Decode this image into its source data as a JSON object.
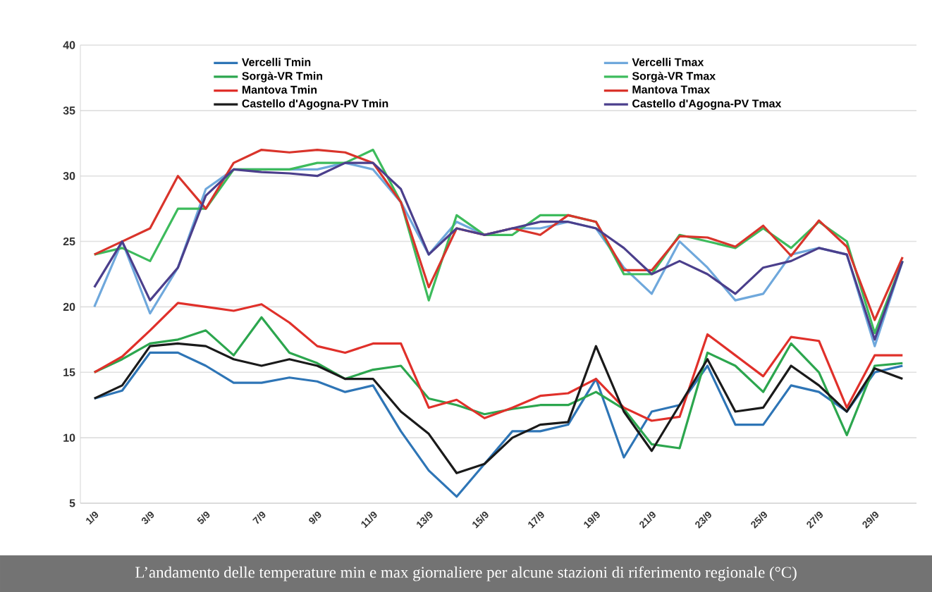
{
  "chart_data": {
    "type": "line",
    "categories": [
      "1/9",
      null,
      "3/9",
      null,
      "5/9",
      null,
      "7/9",
      null,
      "9/9",
      null,
      "11/9",
      null,
      "13/9",
      null,
      "15/9",
      null,
      "17/9",
      null,
      "19/9",
      null,
      "21/9",
      null,
      "23/9",
      null,
      "25/9",
      null,
      "27/9",
      null,
      "29/9",
      null
    ],
    "series": [
      {
        "name": "Vercelli Tmin",
        "color": "#2e75b6",
        "values": [
          13,
          13.6,
          16.5,
          16.5,
          15.5,
          14.2,
          14.2,
          14.6,
          14.3,
          13.5,
          14,
          10.5,
          7.5,
          5.5,
          8,
          10.5,
          10.5,
          11,
          14.5,
          8.5,
          12,
          12.5,
          15.5,
          11,
          11,
          14,
          13.5,
          12,
          15,
          15.5
        ]
      },
      {
        "name": "Vercelli Tmax",
        "color": "#6fa8dc",
        "values": [
          20,
          25,
          19.5,
          23,
          29,
          30.5,
          30.5,
          30.5,
          30.5,
          31,
          30.5,
          28,
          24,
          26.5,
          25.5,
          26,
          26,
          26.5,
          26,
          23,
          21,
          25,
          23,
          20.5,
          21,
          24,
          24.5,
          24,
          17,
          23.5
        ]
      },
      {
        "name": "Sorgà-VR Tmin",
        "color": "#2ca64e",
        "values": [
          15,
          16,
          17.2,
          17.5,
          18.2,
          16.3,
          19.2,
          16.5,
          15.7,
          14.5,
          15.2,
          15.5,
          13,
          12.5,
          11.8,
          12.2,
          12.5,
          12.5,
          13.5,
          12.2,
          9.5,
          9.2,
          16.5,
          15.5,
          13.5,
          17.2,
          15,
          10.2,
          15.5,
          15.7
        ]
      },
      {
        "name": "Sorgà-VR Tmax",
        "color": "#3dbb5c",
        "values": [
          24,
          24.5,
          23.5,
          27.5,
          27.5,
          30.5,
          30.5,
          30.5,
          31,
          31,
          32,
          28,
          20.5,
          27,
          25.5,
          25.5,
          27,
          27,
          26.5,
          22.5,
          22.5,
          25.5,
          25,
          24.5,
          26,
          24.5,
          26.5,
          25,
          18,
          23.5
        ]
      },
      {
        "name": "Mantova  Tmin",
        "color": "#e0302a",
        "values": [
          15,
          16.2,
          18.2,
          20.3,
          20,
          19.7,
          20.2,
          18.8,
          17,
          16.5,
          17.2,
          17.2,
          12.3,
          12.9,
          11.5,
          12.3,
          13.2,
          13.4,
          14.5,
          12.3,
          11.3,
          11.6,
          17.9,
          16.3,
          14.7,
          17.7,
          17.4,
          12.3,
          16.3,
          16.3
        ]
      },
      {
        "name": "Mantova  Tmax",
        "color": "#d9342b",
        "values": [
          24,
          25,
          26,
          30,
          27.5,
          31,
          32,
          31.8,
          32,
          31.8,
          31,
          28,
          21.5,
          26,
          25.5,
          26,
          25.5,
          27,
          26.5,
          22.8,
          22.8,
          25.4,
          25.3,
          24.6,
          26.2,
          23.9,
          26.6,
          24.6,
          19,
          23.8
        ]
      },
      {
        "name": "Castello d'Agogna-PV Tmin",
        "color": "#1a1a1a",
        "values": [
          13,
          14,
          17,
          17.2,
          17,
          16,
          15.5,
          16,
          15.5,
          14.5,
          14.5,
          12,
          10.3,
          7.3,
          8,
          10,
          11,
          11.2,
          17,
          12,
          9,
          12.5,
          16,
          12,
          12.3,
          15.5,
          14,
          12,
          15.3,
          14.5
        ]
      },
      {
        "name": "Castello d'Agogna-PV Tmax",
        "color": "#4b3f8c",
        "values": [
          21.5,
          25,
          20.5,
          23,
          28.5,
          30.5,
          30.3,
          30.2,
          30,
          31,
          31,
          29,
          24,
          26,
          25.5,
          26,
          26.5,
          26.5,
          26,
          24.5,
          22.5,
          23.5,
          22.5,
          21,
          23,
          23.5,
          24.5,
          24,
          17.5,
          23.5
        ]
      }
    ],
    "ylim": [
      5,
      40
    ],
    "yticks": [
      5,
      10,
      15,
      20,
      25,
      30,
      35,
      40
    ],
    "grid": "y",
    "legend": "top",
    "annotations": [
      "L’andamento delle temperature min e max giornaliere per alcune stazioni di riferimento regionale (°C)"
    ]
  }
}
